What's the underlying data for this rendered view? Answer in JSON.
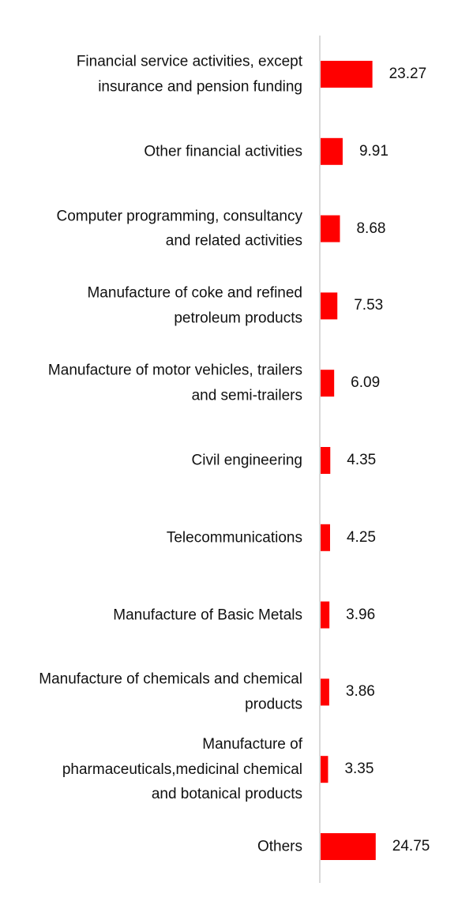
{
  "colors": {
    "bar": "#ff0000",
    "axis": "#d9d9d9",
    "text": "#111111"
  },
  "chart_data": {
    "type": "bar",
    "orientation": "horizontal",
    "categories": [
      "Financial service activities, except insurance and pension funding",
      "Other financial activities",
      "Computer programming, consultancy and related activities",
      "Manufacture of coke and refined petroleum products",
      "Manufacture of motor vehicles, trailers and semi-trailers",
      "Civil engineering",
      "Telecommunications",
      "Manufacture of Basic Metals",
      "Manufacture of chemicals and chemical products",
      "Manufacture of pharmaceuticals,medicinal chemical and botanical products",
      "Others"
    ],
    "values": [
      23.27,
      9.91,
      8.68,
      7.53,
      6.09,
      4.35,
      4.25,
      3.96,
      3.86,
      3.35,
      24.75
    ],
    "value_labels": [
      "23.27",
      "9.91",
      "8.68",
      "7.53",
      "6.09",
      "4.35",
      "4.25",
      "3.96",
      "3.86",
      "3.35",
      "24.75"
    ],
    "xlim": [
      0,
      100
    ],
    "grid": false,
    "legend": "none",
    "data_labels": true
  }
}
